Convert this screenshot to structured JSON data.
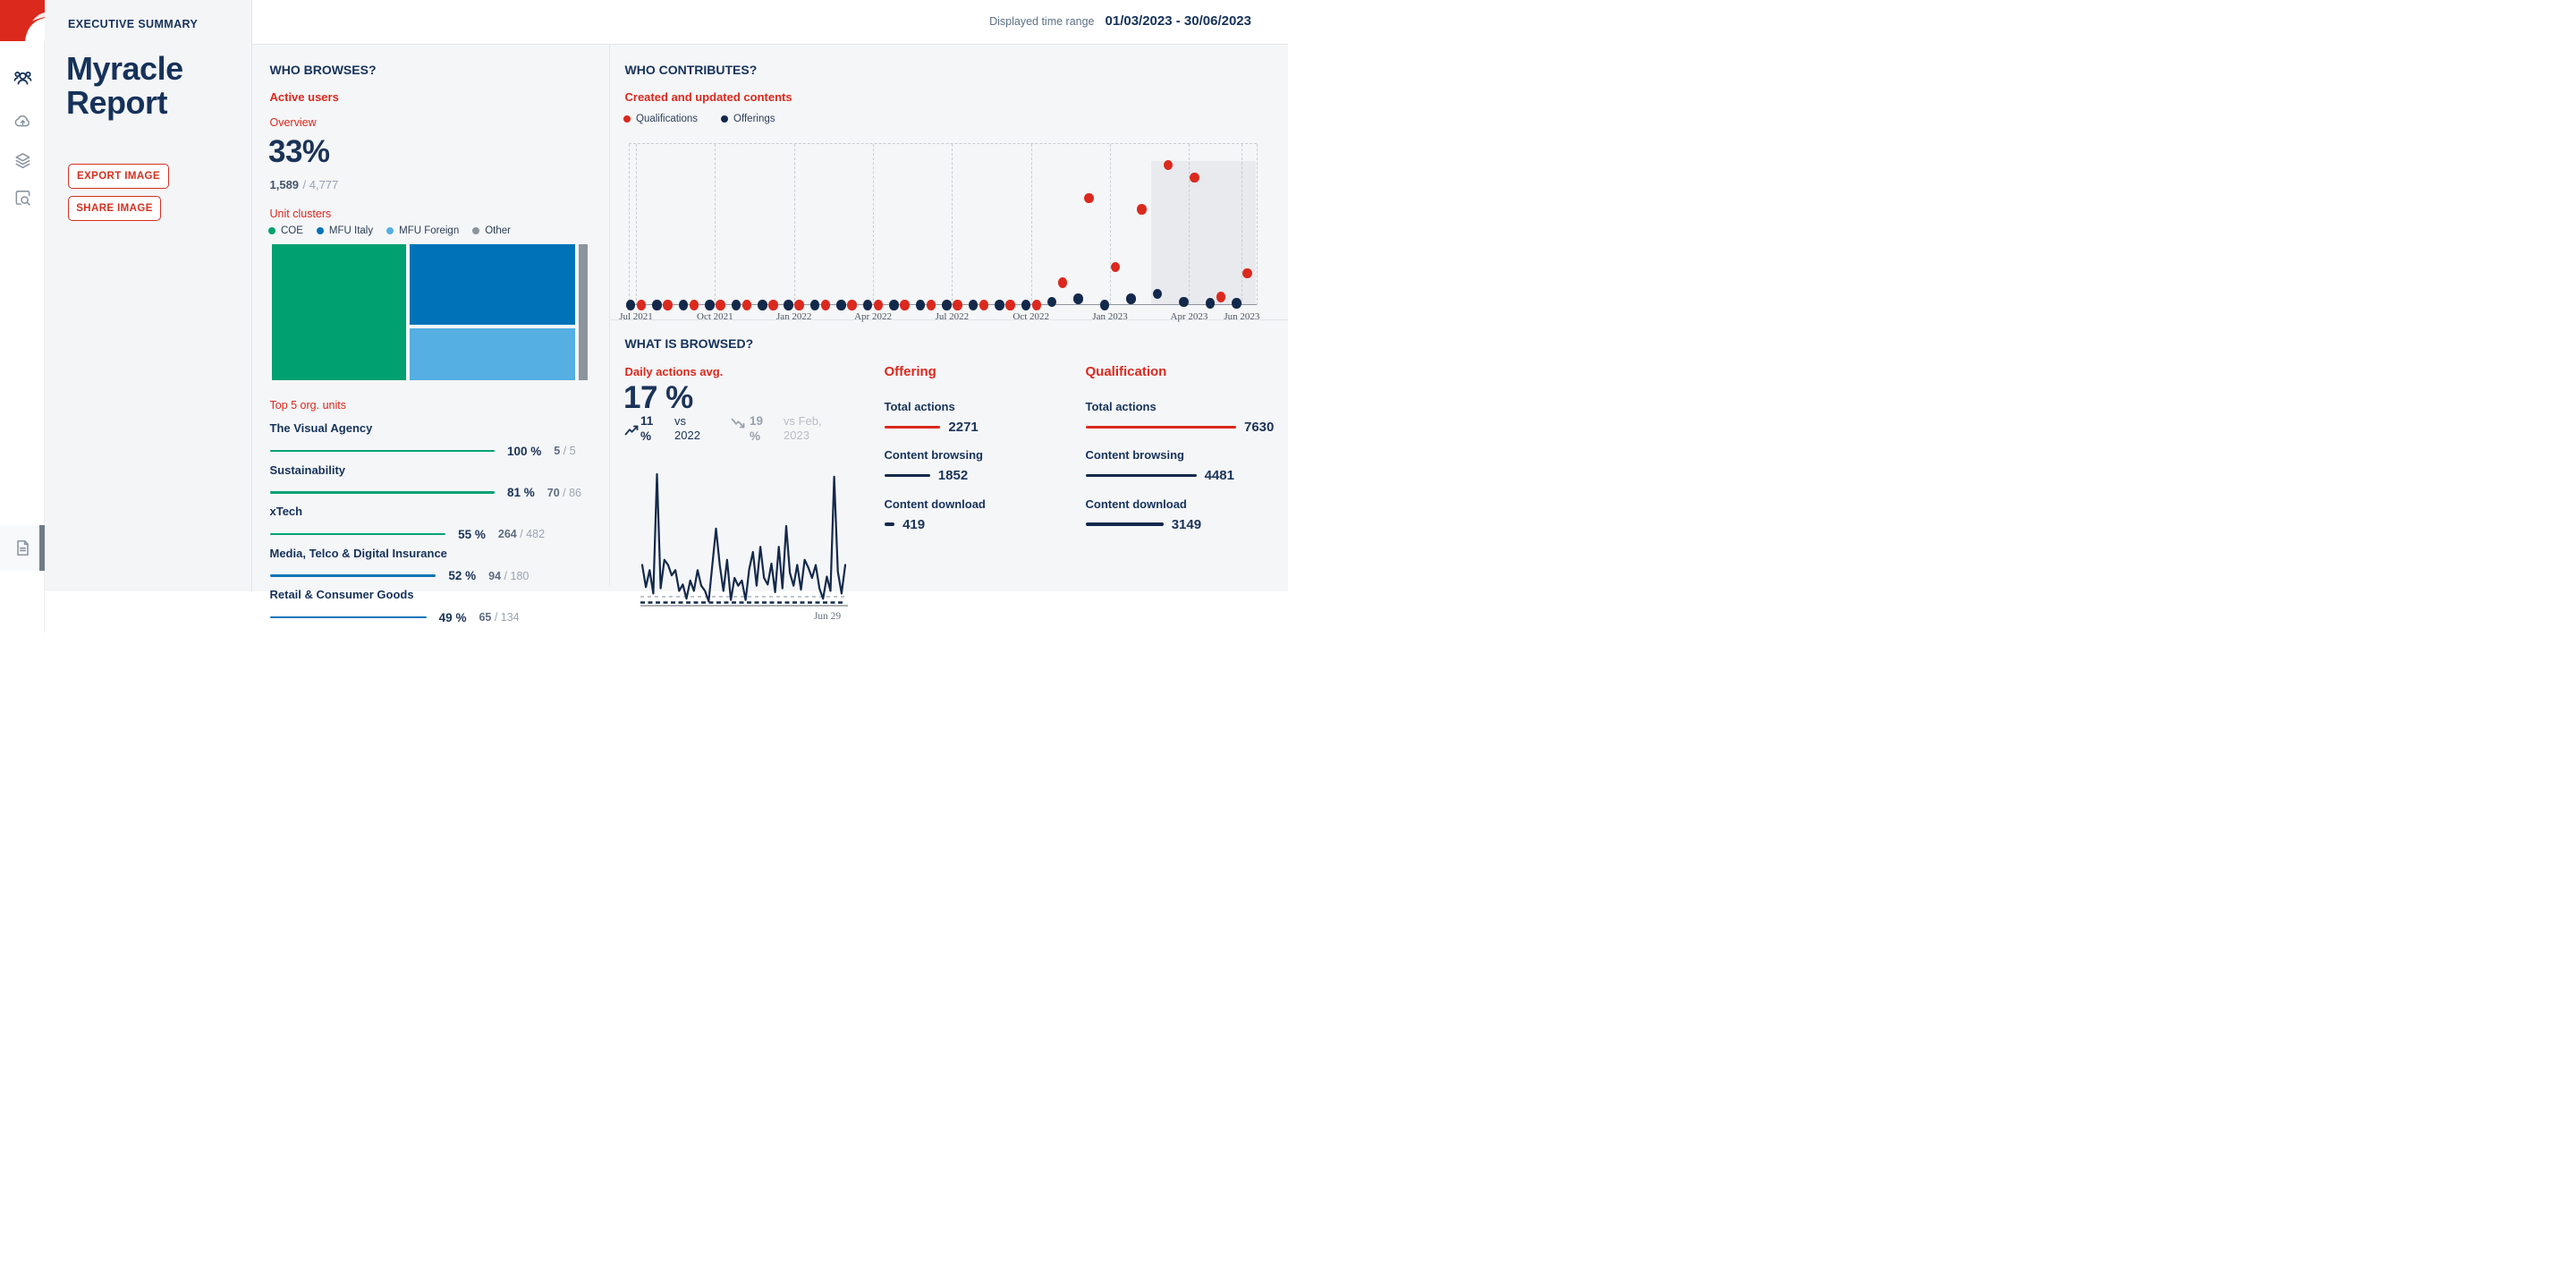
{
  "app": {
    "time_range_label": "Displayed time range",
    "time_range_value": "01/03/2023 - 30/06/2023"
  },
  "sidebar": {
    "logo_color": "#DB291E",
    "items": [
      {
        "icon": "users-group",
        "active": true
      },
      {
        "icon": "cloud-upload",
        "active": false
      },
      {
        "icon": "layers",
        "active": false
      },
      {
        "icon": "search-document",
        "active": false
      }
    ],
    "bottom_item": {
      "icon": "document"
    }
  },
  "left_panel": {
    "eyebrow": "EXECUTIVE SUMMARY",
    "title": "Myracle Report",
    "export_button": "EXPORT IMAGE",
    "share_button": "SHARE IMAGE"
  },
  "who_browses": {
    "title": "WHO BROWSES?",
    "metric_title": "Active users",
    "overview_label": "Overview",
    "percent": "33%",
    "numerator": "1,589",
    "denominator": "/ 4,777",
    "clusters_label": "Unit clusters",
    "top_units_label": "Top 5 org. units"
  },
  "who_contributes": {
    "title": "WHO CONTRIBUTES?",
    "metric_title": "Created and updated contents",
    "legend": [
      {
        "label": "Qualifications",
        "color": "#DB291E"
      },
      {
        "label": "Offerings",
        "color": "#13294B"
      }
    ]
  },
  "what_is_browsed": {
    "title": "WHAT IS BROWSED?",
    "metric_title": "Daily actions avg.",
    "percent": "17 %",
    "trend_up": {
      "value": "11 %",
      "caption": "vs 2022",
      "color": "#1A3358"
    },
    "trend_down": {
      "value": "19 %",
      "caption": "vs Feb, 2023",
      "color": "#9AA3AD"
    },
    "spark_end_label": "Jun 29"
  },
  "chart_data": [
    {
      "type": "treemap",
      "name": "unit-clusters",
      "title": "Unit clusters",
      "items": [
        {
          "label": "COE",
          "color": "#00A070",
          "share": 0.44
        },
        {
          "label": "MFU Italy",
          "color": "#0072B8",
          "share": 0.32
        },
        {
          "label": "MFU Foreign",
          "color": "#55AFE3",
          "share": 0.21
        },
        {
          "label": "Other",
          "color": "#8C959D",
          "share": 0.03
        }
      ]
    },
    {
      "type": "bar",
      "name": "top-5-org-units",
      "title": "Top 5 org. units",
      "items": [
        {
          "name": "The Visual Agency",
          "percent_label": "100 %",
          "value": "5",
          "total": "/ 5",
          "pct": 100,
          "color": "#00A273"
        },
        {
          "name": "Sustainability",
          "percent_label": "81 %",
          "value": "70",
          "total": "/ 86",
          "pct": 81,
          "color": "#00A273"
        },
        {
          "name": "xTech",
          "percent_label": "55 %",
          "value": "264",
          "total": "/ 482",
          "pct": 55,
          "color": "#00A273"
        },
        {
          "name": "Media, Telco & Digital Insurance",
          "percent_label": "52 %",
          "value": "94",
          "total": "/ 180",
          "pct": 52,
          "color": "#0B76B8"
        },
        {
          "name": "Retail & Consumer Goods",
          "percent_label": "49 %",
          "value": "65",
          "total": "/ 134",
          "pct": 49,
          "color": "#0B76B8"
        }
      ]
    },
    {
      "type": "scatter",
      "name": "created-and-updated-contents",
      "title": "Created and updated contents",
      "x_ticks": [
        "Jul 2021",
        "Oct 2021",
        "Jan 2022",
        "Apr 2022",
        "Jul 2022",
        "Oct 2022",
        "Jan 2023",
        "Apr 2023",
        "Jun 2023"
      ],
      "tick_month_index": [
        0,
        3,
        6,
        9,
        12,
        15,
        18,
        21,
        23
      ],
      "months": 24,
      "ylim": [
        0,
        1
      ],
      "grid": "dashed-quarterly",
      "highlight_range": {
        "from": "Mar 2023",
        "to": "Jun 2023"
      },
      "series": [
        {
          "name": "Qualifications",
          "color": "#DB291E",
          "values": [
            0,
            0,
            0,
            0,
            0,
            0,
            0,
            0,
            0,
            0,
            0,
            0,
            0,
            0,
            0,
            0,
            0.14,
            0.67,
            0.24,
            0.6,
            0.88,
            0.8,
            0.05,
            0.2
          ]
        },
        {
          "name": "Offerings",
          "color": "#13294B",
          "values": [
            0,
            0,
            0,
            0,
            0,
            0,
            0,
            0,
            0,
            0,
            0,
            0,
            0,
            0,
            0,
            0,
            0.02,
            0.04,
            0,
            0.04,
            0.07,
            0.02,
            0.01,
            0.01
          ]
        }
      ]
    },
    {
      "type": "line",
      "name": "daily-actions-trend",
      "end_label": "Jun 29",
      "ylim": [
        0,
        1
      ],
      "avg_line": 0.055,
      "baseline": 0,
      "values": [
        0.3,
        0.13,
        0.26,
        0.08,
        1.0,
        0.12,
        0.34,
        0.3,
        0.22,
        0.26,
        0.1,
        0.15,
        0.04,
        0.18,
        0.1,
        0.26,
        0.14,
        0.1,
        0.02,
        0.3,
        0.58,
        0.3,
        0.1,
        0.34,
        0.03,
        0.2,
        0.14,
        0.18,
        0.03,
        0.27,
        0.4,
        0.14,
        0.44,
        0.2,
        0.15,
        0.31,
        0.09,
        0.44,
        0.12,
        0.6,
        0.24,
        0.14,
        0.3,
        0.11,
        0.34,
        0.28,
        0.2,
        0.3,
        0.12,
        0.04,
        0.21,
        0.1,
        0.98,
        0.25,
        0.08,
        0.3
      ]
    },
    {
      "type": "table",
      "name": "browse-stats",
      "columns": [
        {
          "title": "Offering",
          "rows": [
            {
              "label": "Total actions",
              "value": 2271,
              "color": "#DB291E"
            },
            {
              "label": "Content browsing",
              "value": 1852,
              "color": "#13294B"
            },
            {
              "label": "Content download",
              "value": 419,
              "color": "#13294B"
            }
          ]
        },
        {
          "title": "Qualification",
          "rows": [
            {
              "label": "Total actions",
              "value": 7630,
              "color": "#DB291E"
            },
            {
              "label": "Content browsing",
              "value": 4481,
              "color": "#13294B"
            },
            {
              "label": "Content download",
              "value": 3149,
              "color": "#13294B"
            }
          ]
        }
      ]
    }
  ]
}
